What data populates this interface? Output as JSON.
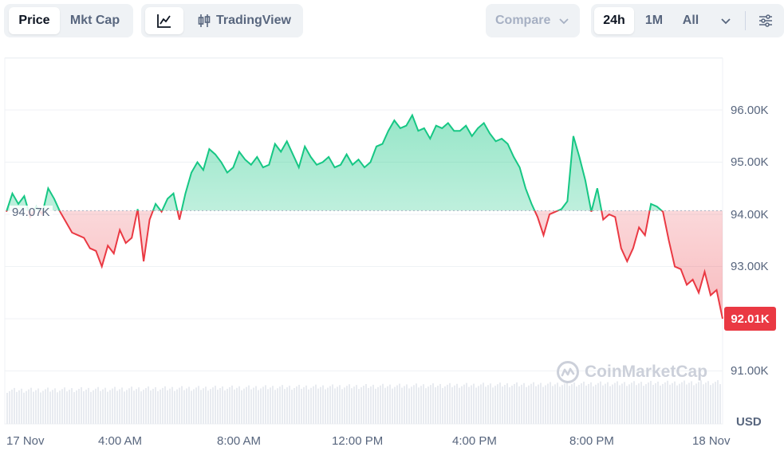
{
  "toolbar": {
    "view_tabs": {
      "price": "Price",
      "mkt_cap": "Mkt Cap",
      "active": "Price"
    },
    "tradingview_label": "TradingView",
    "compare_label": "Compare",
    "ranges": [
      "24h",
      "1M",
      "All"
    ],
    "active_range": "24h",
    "icons": [
      "line-chart-icon",
      "candlestick-icon",
      "chevron-down-icon",
      "settings-sliders-icon"
    ]
  },
  "chart_data": {
    "type": "area",
    "x_labels": [
      "17 Nov",
      "4:00 AM",
      "8:00 AM",
      "12:00 PM",
      "4:00 PM",
      "8:00 PM",
      "18 Nov"
    ],
    "y_ticks": [
      "96.00K",
      "95.00K",
      "94.00K",
      "93.00K",
      "91.00K"
    ],
    "ylim": [
      90000,
      97000
    ],
    "baseline_value": 94070,
    "baseline_label": "94.07K",
    "current_label": "92.01K",
    "currency": "USD",
    "up_color": "#16c784",
    "down_color": "#ea3943",
    "grid": true,
    "series": [
      {
        "x": [
          0,
          0.2,
          0.4,
          0.6,
          0.8,
          1.0,
          1.2,
          1.4,
          1.6,
          1.8,
          2.0,
          2.2,
          2.4,
          2.6,
          2.8,
          3.0,
          3.2,
          3.4,
          3.6,
          3.8,
          4.0,
          4.2,
          4.4,
          4.6,
          4.8,
          5.0,
          5.2,
          5.4,
          5.6,
          5.8,
          6.0,
          6.2,
          6.4,
          6.6,
          6.8,
          7.0,
          7.2,
          7.4,
          7.6,
          7.8,
          8.0,
          8.2,
          8.4,
          8.6,
          8.8,
          9.0,
          9.2,
          9.4,
          9.6,
          9.8,
          10.0,
          10.2,
          10.4,
          10.6,
          10.8,
          11.0,
          11.2,
          11.4,
          11.6,
          11.8,
          12.0,
          12.2,
          12.4,
          12.6,
          12.8,
          13.0,
          13.2,
          13.4,
          13.6,
          13.8,
          14.0,
          14.2,
          14.4,
          14.6,
          14.8,
          15.0,
          15.2,
          15.4,
          15.6,
          15.8,
          16.0,
          16.2,
          16.4,
          16.6,
          16.8,
          17.0,
          17.2,
          17.4,
          17.6,
          17.8,
          18.0,
          18.2,
          18.4,
          18.6,
          18.8,
          19.0,
          19.2,
          19.4,
          19.6,
          19.8,
          20.0,
          20.2,
          20.4,
          20.6,
          20.8,
          21.0,
          21.2,
          21.4,
          21.6,
          21.8,
          22.0,
          22.2,
          22.4,
          22.6,
          22.8,
          23.0,
          23.2,
          23.4,
          23.6,
          23.8,
          24.0
        ],
        "y": [
          94050,
          94400,
          94200,
          94350,
          93950,
          94150,
          94000,
          94500,
          94300,
          94050,
          93850,
          93650,
          93600,
          93550,
          93350,
          93300,
          93000,
          93400,
          93250,
          93700,
          93450,
          93550,
          94100,
          93100,
          93900,
          94200,
          94050,
          94300,
          94400,
          93900,
          94400,
          94800,
          95000,
          94850,
          95250,
          95150,
          95000,
          94800,
          94900,
          95200,
          95050,
          94950,
          95100,
          94900,
          94950,
          95350,
          95200,
          95400,
          95150,
          94900,
          95300,
          95100,
          94950,
          95000,
          95100,
          94900,
          94950,
          95150,
          94950,
          95050,
          94900,
          95000,
          95300,
          95350,
          95600,
          95800,
          95650,
          95700,
          95900,
          95600,
          95650,
          95450,
          95700,
          95650,
          95750,
          95600,
          95600,
          95700,
          95500,
          95650,
          95750,
          95550,
          95400,
          95450,
          95350,
          95100,
          94900,
          94500,
          94200,
          93950,
          93600,
          94000,
          94050,
          94100,
          94250,
          95500,
          95100,
          94650,
          94050,
          94500,
          93900,
          94000,
          93950,
          93350,
          93100,
          93350,
          93750,
          93600,
          94200,
          94150,
          94050,
          93500,
          93000,
          92950,
          92650,
          92750,
          92500,
          92900,
          92450,
          92550,
          92000
        ]
      }
    ]
  },
  "watermark": "CoinMarketCap"
}
